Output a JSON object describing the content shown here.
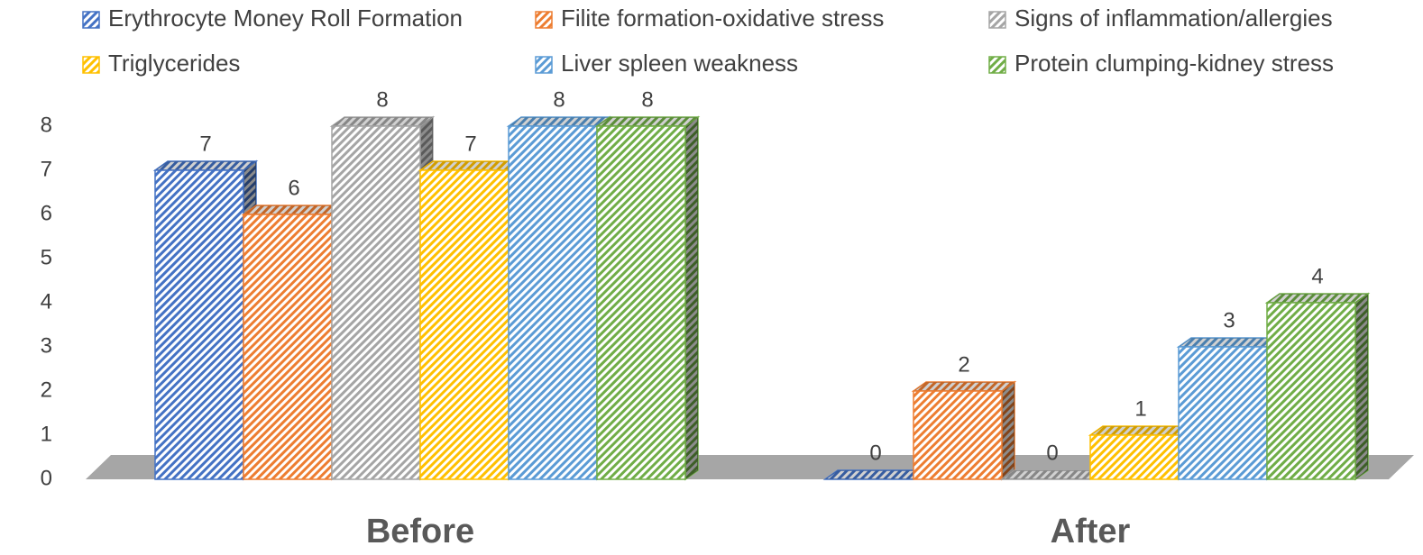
{
  "chart_data": {
    "type": "bar3d",
    "categories": [
      "Before",
      "After"
    ],
    "series": [
      {
        "name": "Erythrocyte Money Roll Formation",
        "color": "#4472c4",
        "values": [
          7,
          0
        ]
      },
      {
        "name": "Filite formation-oxidative stress",
        "color": "#ed7d31",
        "values": [
          6,
          2
        ]
      },
      {
        "name": "Signs of inflammation/allergies",
        "color": "#a5a5a5",
        "values": [
          8,
          0
        ]
      },
      {
        "name": "Triglycerides",
        "color": "#ffc000",
        "values": [
          7,
          1
        ]
      },
      {
        "name": "Liver spleen weakness",
        "color": "#5b9bd5",
        "values": [
          8,
          3
        ]
      },
      {
        "name": "Protein clumping-kidney stress",
        "color": "#70ad47",
        "values": [
          8,
          4
        ]
      }
    ],
    "ylim": [
      0,
      8
    ],
    "yticks": [
      0,
      1,
      2,
      3,
      4,
      5,
      6,
      7,
      8
    ],
    "legend": "top"
  }
}
